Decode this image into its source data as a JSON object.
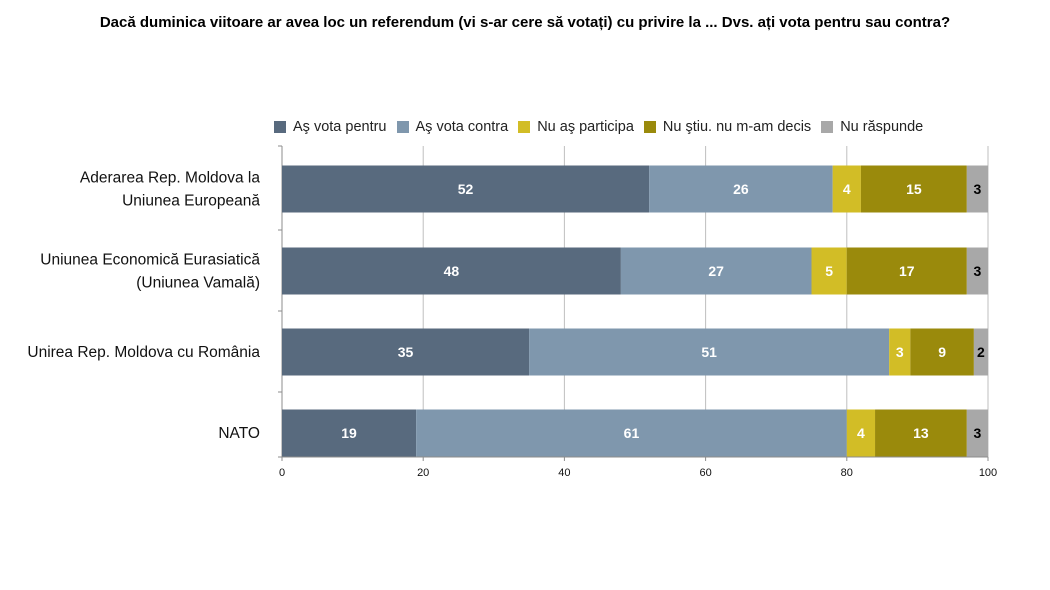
{
  "chart_data": {
    "type": "bar",
    "orientation": "horizontal",
    "stacked": true,
    "title": "Dacă duminica viitoare ar avea loc un referendum (vi s-ar cere să votați) cu privire la ... Dvs. ați vota pentru sau contra?",
    "categories": [
      [
        "Aderarea Rep. Moldova la",
        "Uniunea Europeană"
      ],
      [
        "Uniunea Economică Eurasiatică",
        "(Uniunea Vamală)"
      ],
      [
        "Unirea Rep. Moldova cu România"
      ],
      [
        "NATO"
      ]
    ],
    "series": [
      {
        "name": "Aş vota pentru",
        "color": "#586a7e",
        "label_color": "#ffffff",
        "values": [
          52,
          48,
          35,
          19
        ]
      },
      {
        "name": "Aş vota contra",
        "color": "#7f97ad",
        "label_color": "#ffffff",
        "values": [
          26,
          27,
          51,
          61
        ]
      },
      {
        "name": "Nu aş participa",
        "color": "#d2bd26",
        "label_color": "#ffffff",
        "values": [
          4,
          5,
          3,
          4
        ]
      },
      {
        "name": "Nu ştiu. nu m-am decis",
        "color": "#9a8a0c",
        "label_color": "#ffffff",
        "values": [
          15,
          17,
          9,
          13
        ]
      },
      {
        "name": "Nu răspunde",
        "color": "#a8a8a8",
        "label_color": "#000000",
        "values": [
          3,
          3,
          2,
          3
        ]
      }
    ],
    "xlim": [
      0,
      100
    ],
    "xticks": [
      "0",
      "20",
      "40",
      "60",
      "80",
      "100"
    ],
    "grid": true,
    "legend_position": "top"
  }
}
